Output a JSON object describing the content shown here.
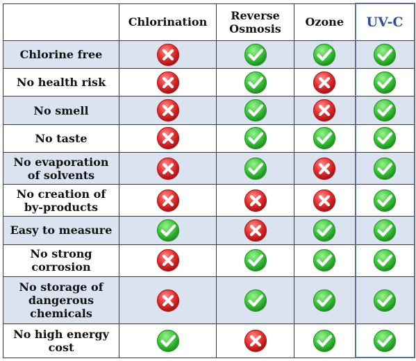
{
  "header": {
    "columns": [
      "Chlorination",
      "Reverse Osmosis",
      "Ozone",
      "UV-C"
    ]
  },
  "rows": [
    {
      "label": "Chlorine free",
      "marks": [
        "no",
        "yes",
        "yes",
        "yes"
      ]
    },
    {
      "label": "No health risk",
      "marks": [
        "no",
        "yes",
        "no",
        "yes"
      ]
    },
    {
      "label": "No smell",
      "marks": [
        "no",
        "yes",
        "no",
        "yes"
      ]
    },
    {
      "label": "No taste",
      "marks": [
        "no",
        "yes",
        "yes",
        "yes"
      ]
    },
    {
      "label": "No evaporation of solvents",
      "marks": [
        "no",
        "yes",
        "no",
        "yes"
      ]
    },
    {
      "label": "No creation of by-products",
      "marks": [
        "no",
        "no",
        "no",
        "yes"
      ]
    },
    {
      "label": "Easy to measure",
      "marks": [
        "yes",
        "no",
        "yes",
        "yes"
      ]
    },
    {
      "label": "No strong corrosion",
      "marks": [
        "no",
        "yes",
        "yes",
        "yes"
      ]
    },
    {
      "label": "No storage of dangerous chemicals",
      "marks": [
        "no",
        "yes",
        "yes",
        "yes"
      ]
    },
    {
      "label": "No high energy cost",
      "marks": [
        "yes",
        "no",
        "yes",
        "yes"
      ]
    }
  ],
  "colors": {
    "yes": "#39c43a",
    "no": "#e32b2b",
    "alt_row": "#dbe3f1",
    "uvc_header": "#2f4f9a"
  },
  "icons": {
    "yes": "green-checkmark-icon",
    "no": "red-x-icon"
  }
}
